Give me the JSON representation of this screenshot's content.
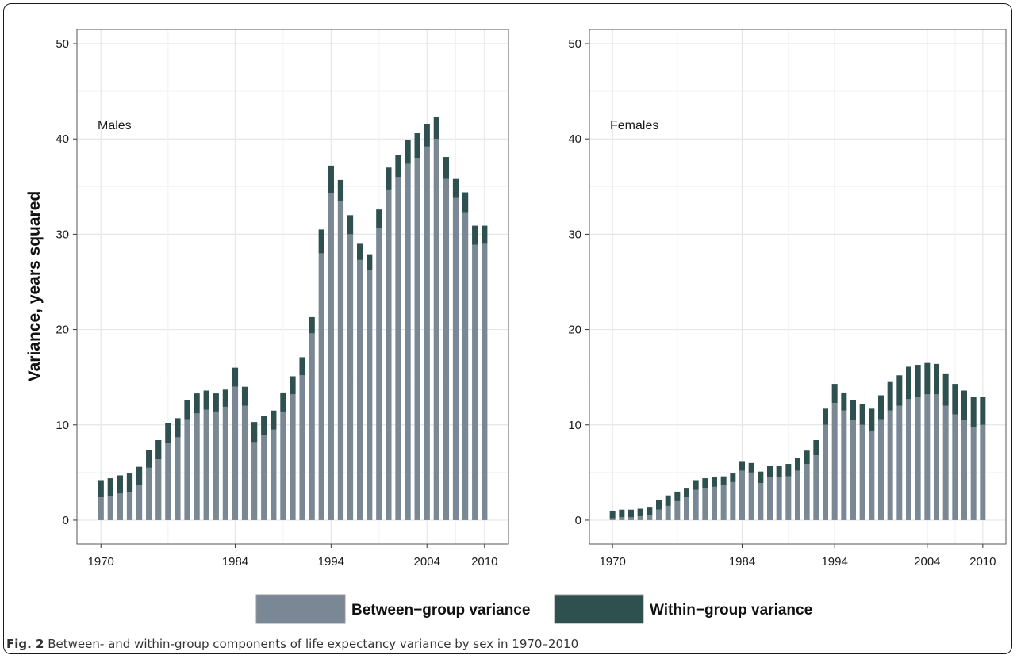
{
  "colors": {
    "between": "#7a8896",
    "within": "#2e504f",
    "grid": "#e6e6e6",
    "panel_border": "#555555"
  },
  "caption": {
    "label": "Fig. 2",
    "text": "Between- and within-group components of life expectancy variance by sex in 1970–2010"
  },
  "chart_data": [
    {
      "type": "bar",
      "stacked": true,
      "panel_label": "Males",
      "ylabel": "Variance, years squared",
      "xlabel": "",
      "ylim": [
        -2.5,
        51.5
      ],
      "yticks": [
        0,
        10,
        20,
        30,
        40,
        50
      ],
      "xlim": [
        1967.5,
        2012.5
      ],
      "xticks": [
        1970,
        1984,
        1994,
        2004,
        2010
      ],
      "grid": true,
      "x": [
        1970,
        1971,
        1972,
        1973,
        1974,
        1975,
        1976,
        1977,
        1978,
        1979,
        1980,
        1981,
        1982,
        1983,
        1984,
        1985,
        1986,
        1987,
        1988,
        1989,
        1990,
        1991,
        1992,
        1993,
        1994,
        1995,
        1996,
        1997,
        1998,
        1999,
        2000,
        2001,
        2002,
        2003,
        2004,
        2005,
        2006,
        2007,
        2008,
        2009,
        2010
      ],
      "series": [
        {
          "name": "Between−group variance",
          "values": [
            2.4,
            2.5,
            2.8,
            2.9,
            3.7,
            5.5,
            6.4,
            8.1,
            8.7,
            10.6,
            11.2,
            11.6,
            11.4,
            11.9,
            14.0,
            12.0,
            8.2,
            8.9,
            9.5,
            11.4,
            13.2,
            15.2,
            19.6,
            28.0,
            34.3,
            33.5,
            30.0,
            27.3,
            26.2,
            30.7,
            34.7,
            36.0,
            37.4,
            38.0,
            39.2,
            40.0,
            35.8,
            33.8,
            32.3,
            28.9,
            29.0
          ]
        },
        {
          "name": "Within−group variance",
          "values": [
            1.8,
            1.9,
            1.9,
            2.0,
            1.9,
            1.9,
            2.0,
            2.1,
            2.0,
            2.0,
            2.1,
            2.0,
            1.9,
            1.8,
            2.0,
            2.0,
            2.1,
            2.0,
            2.0,
            2.0,
            1.9,
            1.9,
            1.7,
            2.5,
            2.9,
            2.2,
            2.0,
            1.7,
            1.7,
            1.9,
            2.3,
            2.3,
            2.5,
            2.6,
            2.4,
            2.3,
            2.3,
            2.0,
            2.1,
            2.0,
            1.9
          ]
        }
      ]
    },
    {
      "type": "bar",
      "stacked": true,
      "panel_label": "Females",
      "ylabel": "",
      "xlabel": "",
      "ylim": [
        -2.5,
        51.5
      ],
      "yticks": [
        0,
        10,
        20,
        30,
        40,
        50
      ],
      "xlim": [
        1967.5,
        2012.5
      ],
      "xticks": [
        1970,
        1984,
        1994,
        2004,
        2010
      ],
      "grid": true,
      "x": [
        1970,
        1971,
        1972,
        1973,
        1974,
        1975,
        1976,
        1977,
        1978,
        1979,
        1980,
        1981,
        1982,
        1983,
        1984,
        1985,
        1986,
        1987,
        1988,
        1989,
        1990,
        1991,
        1992,
        1993,
        1994,
        1995,
        1996,
        1997,
        1998,
        1999,
        2000,
        2001,
        2002,
        2003,
        2004,
        2005,
        2006,
        2007,
        2008,
        2009,
        2010
      ],
      "series": [
        {
          "name": "Between−group variance",
          "values": [
            0.2,
            0.3,
            0.3,
            0.4,
            0.5,
            1.1,
            1.5,
            2.0,
            2.4,
            3.2,
            3.4,
            3.5,
            3.7,
            4.0,
            5.2,
            5.0,
            3.9,
            4.5,
            4.5,
            4.6,
            5.2,
            5.9,
            6.8,
            10.0,
            12.3,
            11.5,
            10.5,
            10.0,
            9.4,
            10.6,
            11.5,
            12.0,
            12.7,
            12.9,
            13.2,
            13.2,
            12.0,
            11.1,
            10.5,
            9.8,
            10.0
          ]
        },
        {
          "name": "Within−group variance",
          "values": [
            0.8,
            0.8,
            0.8,
            0.8,
            0.9,
            1.0,
            1.1,
            1.0,
            1.0,
            1.0,
            1.0,
            1.0,
            0.9,
            0.9,
            1.0,
            1.0,
            1.2,
            1.2,
            1.2,
            1.3,
            1.3,
            1.4,
            1.6,
            1.7,
            2.0,
            1.9,
            2.1,
            2.2,
            2.3,
            2.5,
            3.0,
            3.2,
            3.4,
            3.4,
            3.3,
            3.2,
            3.4,
            3.2,
            3.1,
            3.1,
            2.9
          ]
        }
      ]
    }
  ]
}
